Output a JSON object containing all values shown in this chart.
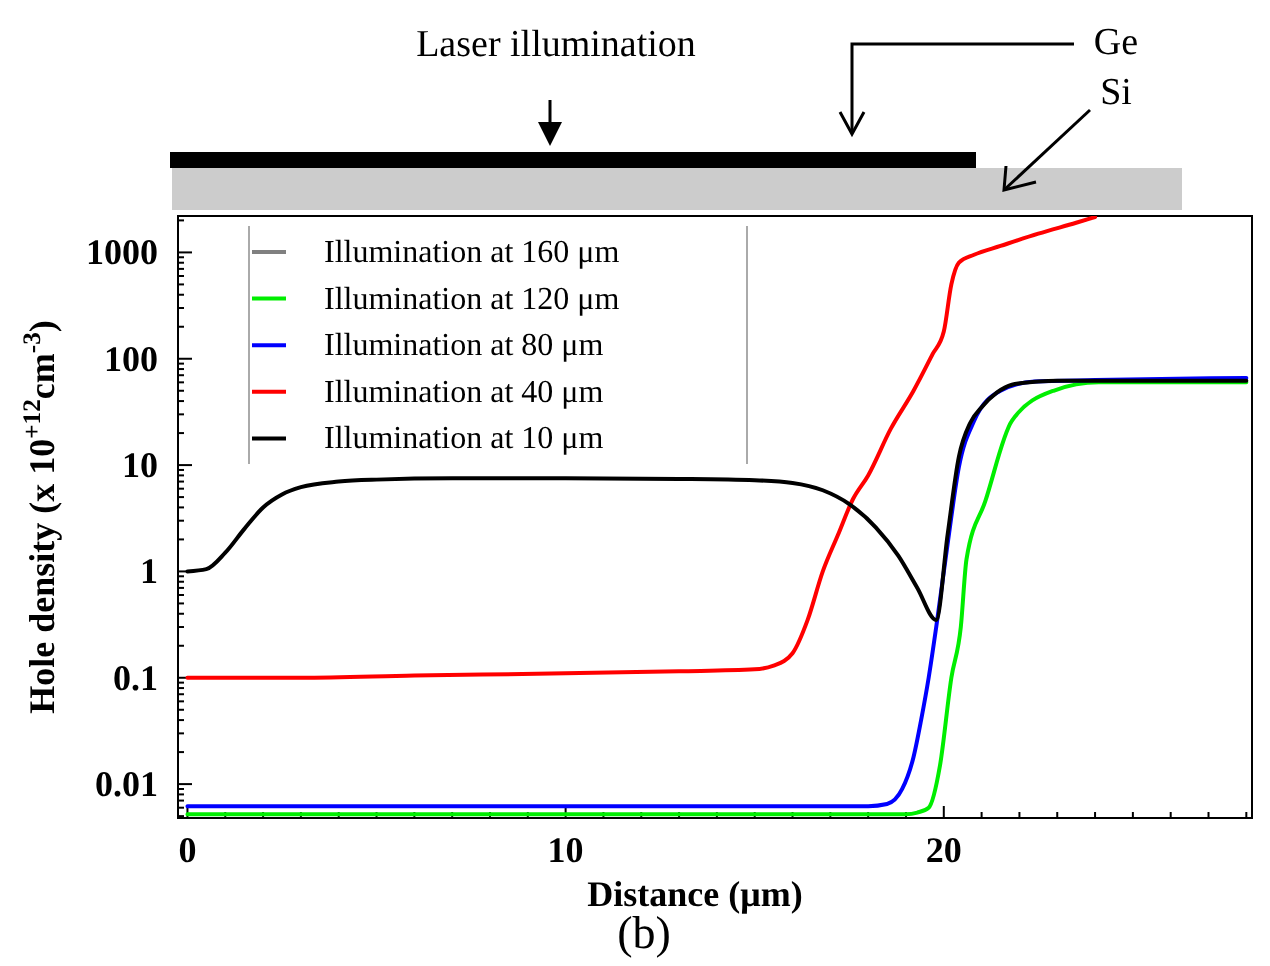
{
  "chart_data": {
    "type": "line",
    "xlabel": "Distance (μm)",
    "ylabel": "Hole density (x 10$^{+12}$cm$^{-3}$)",
    "annotations": [
      "Laser illumination",
      "Ge",
      "Si",
      "(b)"
    ],
    "log": "y",
    "xlim": [
      -0.25,
      28.15
    ],
    "xticks": [
      0,
      {
        "value": 1,
        "label": null
      },
      {
        "value": 2,
        "label": null
      },
      {
        "value": 3,
        "label": null
      },
      {
        "value": 4,
        "label": null
      },
      {
        "value": 5,
        "label": null
      },
      {
        "value": 6,
        "label": null
      },
      {
        "value": 7,
        "label": null
      },
      {
        "value": 8,
        "label": null
      },
      {
        "value": 9,
        "label": null
      },
      10,
      {
        "value": 11,
        "label": null
      },
      {
        "value": 12,
        "label": null
      },
      {
        "value": 13,
        "label": null
      },
      {
        "value": 14,
        "label": null
      },
      {
        "value": 15,
        "label": null
      },
      {
        "value": 16,
        "label": null
      },
      {
        "value": 17,
        "label": null
      },
      {
        "value": 18,
        "label": null
      },
      {
        "value": 19,
        "label": null
      },
      20,
      {
        "value": 21,
        "label": null
      },
      {
        "value": 22,
        "label": null
      },
      {
        "value": 23,
        "label": null
      },
      {
        "value": 24,
        "label": null
      },
      {
        "value": 25,
        "label": null
      },
      {
        "value": 26,
        "label": null
      },
      {
        "value": 27,
        "label": null
      },
      {
        "value": 28,
        "label": null
      }
    ],
    "ylim": [
      0.0048,
      2200
    ],
    "yticks": [
      {
        "value": 0.005,
        "label": null
      },
      {
        "value": 0.006,
        "label": null
      },
      {
        "value": 0.007,
        "label": null
      },
      {
        "value": 0.008,
        "label": null
      },
      {
        "value": 0.009,
        "label": null
      },
      0.01,
      {
        "value": 0.02,
        "label": null
      },
      {
        "value": 0.03,
        "label": null
      },
      {
        "value": 0.04,
        "label": null
      },
      {
        "value": 0.05,
        "label": null
      },
      {
        "value": 0.06,
        "label": null
      },
      {
        "value": 0.07,
        "label": null
      },
      {
        "value": 0.08,
        "label": null
      },
      {
        "value": 0.09,
        "label": null
      },
      0.1,
      {
        "value": 0.2,
        "label": null
      },
      {
        "value": 0.3,
        "label": null
      },
      {
        "value": 0.4,
        "label": null
      },
      {
        "value": 0.5,
        "label": null
      },
      {
        "value": 0.6,
        "label": null
      },
      {
        "value": 0.7,
        "label": null
      },
      {
        "value": 0.8,
        "label": null
      },
      {
        "value": 0.9,
        "label": null
      },
      1,
      {
        "value": 2,
        "label": null
      },
      {
        "value": 3,
        "label": null
      },
      {
        "value": 4,
        "label": null
      },
      {
        "value": 5,
        "label": null
      },
      {
        "value": 6,
        "label": null
      },
      {
        "value": 7,
        "label": null
      },
      {
        "value": 8,
        "label": null
      },
      {
        "value": 9,
        "label": null
      },
      10,
      {
        "value": 20,
        "label": null
      },
      {
        "value": 30,
        "label": null
      },
      {
        "value": 40,
        "label": null
      },
      {
        "value": 50,
        "label": null
      },
      {
        "value": 60,
        "label": null
      },
      {
        "value": 70,
        "label": null
      },
      {
        "value": 80,
        "label": null
      },
      {
        "value": 90,
        "label": null
      },
      100,
      {
        "value": 200,
        "label": null
      },
      {
        "value": 300,
        "label": null
      },
      {
        "value": 400,
        "label": null
      },
      {
        "value": 500,
        "label": null
      },
      {
        "value": 600,
        "label": null
      },
      {
        "value": 700,
        "label": null
      },
      {
        "value": 800,
        "label": null
      },
      {
        "value": 900,
        "label": null
      },
      1000,
      {
        "value": 2000,
        "label": null
      }
    ],
    "grid": false,
    "legend": "top left",
    "marker": "none",
    "line_style": "solid",
    "series": [
      {
        "name": "Illumination at 160 μm",
        "color": "#808080"
      },
      {
        "name": "Illumination at 120 μm",
        "color": "#00ee00",
        "x": [
          0,
          10,
          19,
          19.3,
          19.6,
          19.9,
          20.2,
          20.45,
          20.6,
          21.1,
          21.8,
          22.9,
          24.1,
          28
        ],
        "values": [
          0.0052,
          0.0052,
          0.0052,
          0.0054,
          0.006,
          0.015,
          0.1,
          0.3,
          1.3,
          4.6,
          26,
          50,
          60,
          60
        ]
      },
      {
        "name": "Illumination at 80 μm",
        "color": "#0000ff",
        "x": [
          0,
          5,
          10,
          15,
          18,
          18.5,
          18.9,
          19.2,
          19.4,
          19.6,
          19.8,
          20.1,
          20.4,
          20.8,
          21.5,
          22.4,
          24,
          28
        ],
        "values": [
          0.0062,
          0.0062,
          0.0062,
          0.0062,
          0.0062,
          0.0065,
          0.009,
          0.018,
          0.04,
          0.1,
          0.3,
          1.8,
          9.6,
          26,
          50,
          61,
          63,
          66
        ]
      },
      {
        "name": "Illumination at 40 μm",
        "color": "#ff0000",
        "x": [
          0,
          3,
          6,
          10,
          13,
          15,
          15.5,
          16,
          16.4,
          16.8,
          17.2,
          17.6,
          18,
          18.6,
          19.2,
          19.7,
          20,
          20.2,
          20.4,
          20.8,
          21.5,
          22.5,
          23.5,
          24
        ],
        "values": [
          0.1,
          0.1,
          0.105,
          0.11,
          0.115,
          0.12,
          0.13,
          0.17,
          0.35,
          1,
          2.2,
          4.8,
          8,
          22,
          50,
          110,
          180,
          500,
          800,
          950,
          1150,
          1500,
          1900,
          2150
        ]
      },
      {
        "name": "Illumination at 10 μm",
        "color": "#000000",
        "x": [
          0,
          0.5,
          1,
          1.5,
          2,
          2.5,
          3,
          4,
          5,
          7,
          10,
          13,
          15,
          16,
          16.8,
          17.5,
          18.2,
          18.8,
          19.3,
          19.8,
          20.1,
          20.4,
          20.7,
          21,
          21.4,
          21.8,
          22.5,
          23,
          25,
          28
        ],
        "values": [
          1,
          1.05,
          1.5,
          2.5,
          4,
          5.3,
          6.2,
          7,
          7.3,
          7.5,
          7.5,
          7.4,
          7.2,
          6.8,
          5.8,
          4.3,
          2.6,
          1.4,
          0.7,
          0.35,
          2.2,
          12,
          25,
          35,
          48,
          57,
          61,
          62,
          62,
          62
        ]
      }
    ]
  }
}
